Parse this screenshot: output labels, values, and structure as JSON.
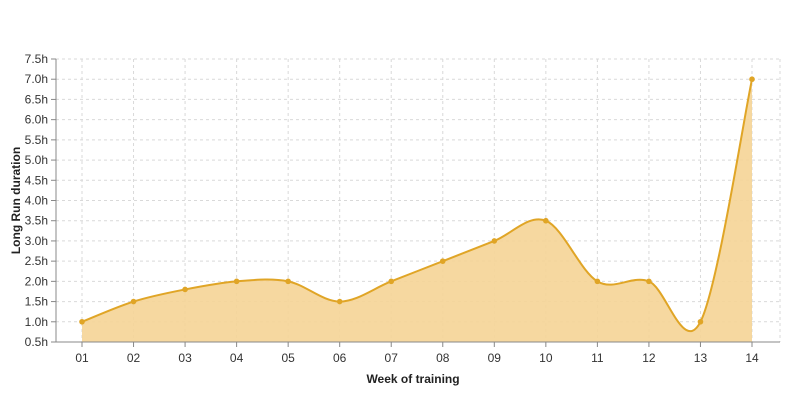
{
  "chart_data": {
    "type": "area",
    "title": "",
    "xlabel": "Week of training",
    "ylabel": "Long Run duration",
    "categories": [
      "01",
      "02",
      "03",
      "04",
      "05",
      "06",
      "07",
      "08",
      "09",
      "10",
      "11",
      "12",
      "13",
      "14"
    ],
    "series": [
      {
        "values": [
          1.0,
          1.5,
          1.8,
          2.0,
          2.0,
          1.5,
          2.0,
          2.5,
          3.0,
          3.5,
          2.0,
          2.0,
          1.0,
          7.0
        ]
      }
    ],
    "ylim": [
      0.5,
      7.5
    ],
    "yticks": [
      "0.5h",
      "1.0h",
      "1.5h",
      "2.0h",
      "2.5h",
      "3.0h",
      "3.5h",
      "4.0h",
      "4.5h",
      "5.0h",
      "5.5h",
      "6.0h",
      "6.5h",
      "7.0h",
      "7.5h"
    ],
    "grid": true,
    "colors": {
      "line": "#E0A526",
      "fill": "#F5D496",
      "marker": "#E0A526"
    }
  }
}
